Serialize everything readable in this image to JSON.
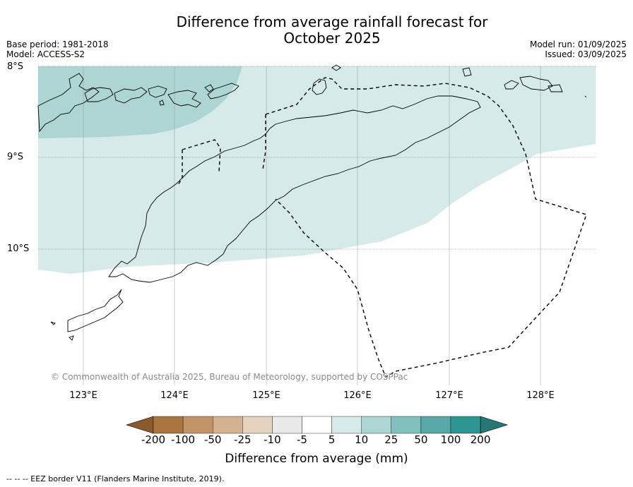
{
  "title_line1": "Difference from average rainfall forecast for",
  "title_line2": "October 2025",
  "base_period": "Base period: 1981-2018",
  "model": "Model: ACCESS-S2",
  "model_run": "Model run: 01/09/2025",
  "issued": "Issued: 03/09/2025",
  "lat_labels": [
    "8°S",
    "9°S",
    "10°S"
  ],
  "lon_labels": [
    "123°E",
    "124°E",
    "125°E",
    "126°E",
    "127°E",
    "128°E"
  ],
  "copyright": "© Commonwealth of Australia 2025, Bureau of Meteorology, supported by COSPPac",
  "colorbar": {
    "ticks": [
      "-200",
      "-100",
      "-50",
      "-25",
      "-10",
      "-5",
      "5",
      "10",
      "25",
      "50",
      "100",
      "200"
    ],
    "colors": [
      "#8b5a2b",
      "#ab7540",
      "#c29466",
      "#d4b290",
      "#e6d3bf",
      "#e9e9e9",
      "#ffffff",
      "#d5eae9",
      "#acd5d3",
      "#80c0bd",
      "#57a8a6",
      "#2e9593",
      "#257875"
    ],
    "title": "Difference from average (mm)"
  },
  "footnote": "--  --  -- EEZ border V11 (Flanders Marine Institute, 2019)."
}
